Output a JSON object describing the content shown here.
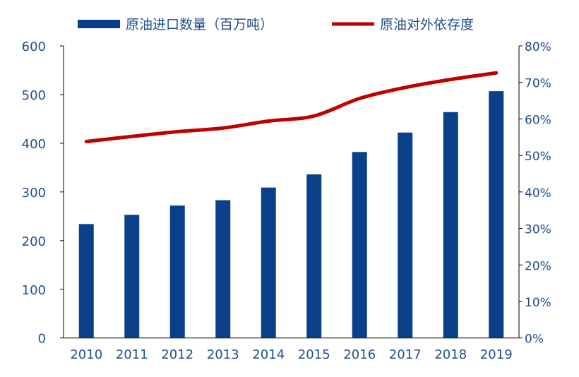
{
  "chart_data": {
    "type": "bar+line",
    "categories": [
      "2010",
      "2011",
      "2012",
      "2013",
      "2014",
      "2015",
      "2016",
      "2017",
      "2018",
      "2019"
    ],
    "series": [
      {
        "name": "原油进口数量（百万吨）",
        "type": "bar",
        "axis": "left",
        "color": "#0a408a",
        "values": [
          234,
          253,
          272,
          283,
          309,
          336,
          382,
          422,
          464,
          507
        ]
      },
      {
        "name": "原油对外依存度",
        "type": "line",
        "axis": "right",
        "color": "#c00000",
        "values": [
          53.8,
          55.2,
          56.5,
          57.5,
          59.4,
          60.8,
          65.6,
          68.6,
          70.8,
          72.6
        ]
      }
    ],
    "left_axis": {
      "ylim": [
        0,
        600
      ],
      "ticks": [
        "0",
        "100",
        "200",
        "300",
        "400",
        "500",
        "600"
      ]
    },
    "right_axis": {
      "ylim": [
        0,
        80
      ],
      "ticks": [
        "0%",
        "10%",
        "20%",
        "30%",
        "40%",
        "50%",
        "60%",
        "70%",
        "80%"
      ]
    },
    "legend": "top",
    "grid": false
  }
}
